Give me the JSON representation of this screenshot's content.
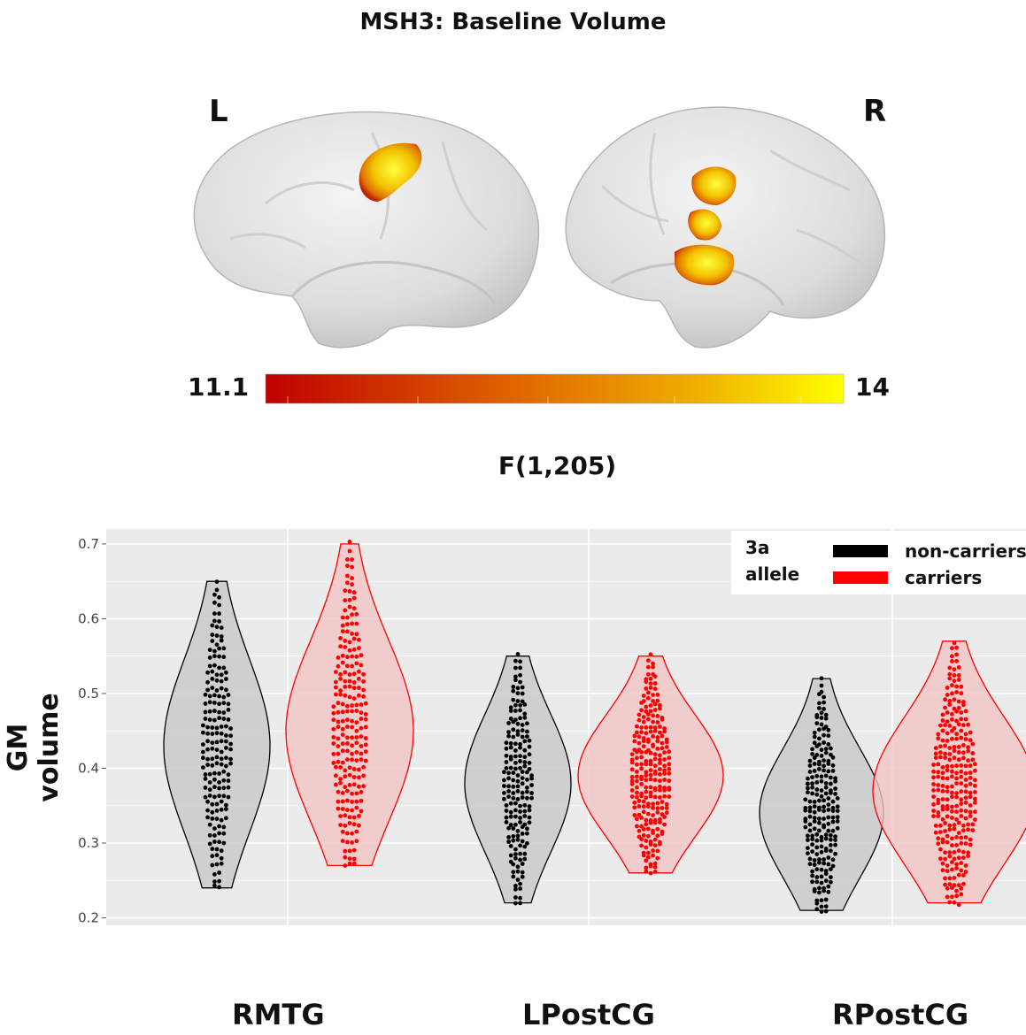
{
  "figure": {
    "title": "MSH3: Baseline Volume",
    "hemisphere_left": "L",
    "hemisphere_right": "R",
    "colorbar": {
      "min_label": "11.1",
      "max_label": "14",
      "stat_label": "F(1,205)",
      "colors": [
        "#c00000",
        "#e06a00",
        "#f0b000",
        "#ffff00"
      ]
    }
  },
  "chart_data": {
    "type": "violin",
    "ylabel": "GM volume",
    "ylim": [
      0.2,
      0.72
    ],
    "yticks": [
      "0.2",
      "0.3",
      "0.4",
      "0.5",
      "0.6",
      "0.7"
    ],
    "categories": [
      "RMTG",
      "LPostCG",
      "RPostCG"
    ],
    "legend": {
      "title_line1": "3a",
      "title_line2": "allele",
      "placement": "top-right"
    },
    "series": [
      {
        "name": "non-carriers",
        "color": "#000000",
        "fill": "#c8c8c8",
        "groups": [
          {
            "category": "RMTG",
            "min": 0.24,
            "max": 0.65,
            "median": 0.43
          },
          {
            "category": "LPostCG",
            "min": 0.22,
            "max": 0.55,
            "median": 0.38
          },
          {
            "category": "RPostCG",
            "min": 0.21,
            "max": 0.52,
            "median": 0.34
          }
        ]
      },
      {
        "name": "carriers",
        "color": "#ff0000",
        "fill": "#f2c4c4",
        "groups": [
          {
            "category": "RMTG",
            "min": 0.27,
            "max": 0.7,
            "median": 0.45
          },
          {
            "category": "LPostCG",
            "min": 0.26,
            "max": 0.55,
            "median": 0.39
          },
          {
            "category": "RPostCG",
            "min": 0.22,
            "max": 0.57,
            "median": 0.37
          }
        ]
      }
    ]
  }
}
